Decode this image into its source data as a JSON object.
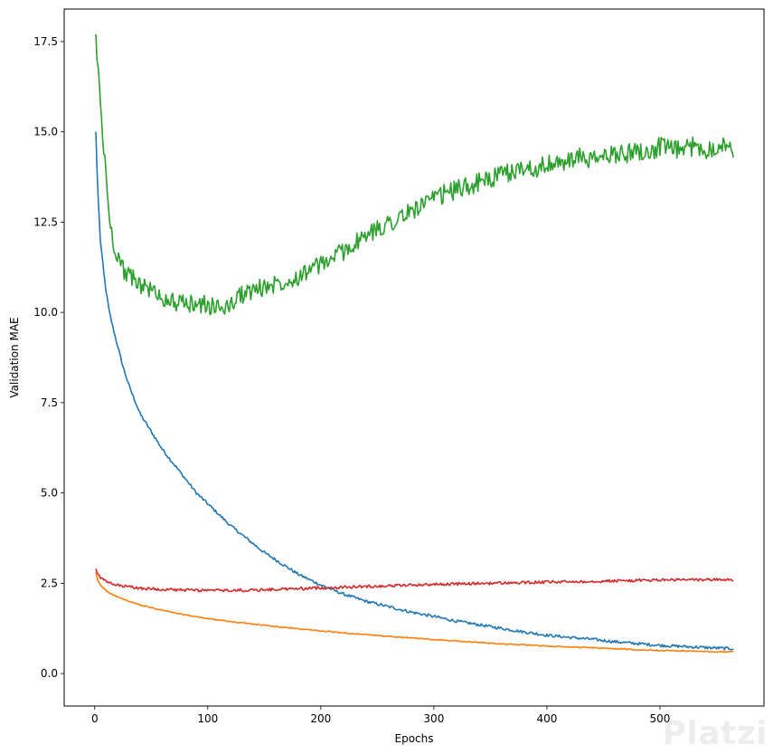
{
  "chart_data": {
    "type": "line",
    "title": "",
    "xlabel": "Epochs",
    "ylabel": "Validation MAE",
    "xlim": [
      -27,
      592
    ],
    "ylim": [
      -0.9,
      18.4
    ],
    "xticks": [
      0,
      100,
      200,
      300,
      400,
      500
    ],
    "yticks": [
      0.0,
      2.5,
      5.0,
      7.5,
      10.0,
      12.5,
      15.0,
      17.5
    ],
    "grid": false,
    "series": [
      {
        "name": "series-1",
        "color": "#1f77b4",
        "x": [
          1,
          2,
          3,
          5,
          8,
          10,
          13,
          16,
          20,
          25,
          30,
          35,
          40,
          50,
          60,
          70,
          80,
          90,
          100,
          110,
          120,
          130,
          140,
          150,
          160,
          170,
          180,
          190,
          200,
          220,
          240,
          260,
          280,
          300,
          320,
          340,
          360,
          380,
          400,
          420,
          440,
          460,
          480,
          500,
          520,
          540,
          555,
          565
        ],
        "y": [
          15.0,
          14.0,
          13.2,
          12.0,
          11.1,
          10.6,
          10.0,
          9.6,
          9.1,
          8.5,
          8.0,
          7.6,
          7.2,
          6.7,
          6.2,
          5.8,
          5.4,
          5.0,
          4.7,
          4.4,
          4.1,
          3.85,
          3.6,
          3.35,
          3.15,
          2.95,
          2.75,
          2.6,
          2.45,
          2.2,
          2.0,
          1.85,
          1.7,
          1.58,
          1.45,
          1.35,
          1.25,
          1.15,
          1.06,
          1.0,
          0.95,
          0.88,
          0.83,
          0.78,
          0.75,
          0.72,
          0.7,
          0.69
        ]
      },
      {
        "name": "series-2",
        "color": "#ff7f0e",
        "x": [
          1,
          3,
          5,
          10,
          15,
          20,
          30,
          40,
          50,
          60,
          80,
          100,
          120,
          140,
          160,
          180,
          200,
          250,
          300,
          350,
          400,
          450,
          500,
          540,
          565
        ],
        "y": [
          2.8,
          2.55,
          2.45,
          2.3,
          2.2,
          2.12,
          2.0,
          1.9,
          1.82,
          1.75,
          1.62,
          1.52,
          1.44,
          1.37,
          1.3,
          1.24,
          1.18,
          1.05,
          0.94,
          0.84,
          0.76,
          0.7,
          0.64,
          0.61,
          0.6
        ]
      },
      {
        "name": "series-3",
        "color": "#2ca02c",
        "x": [
          1,
          2,
          3,
          5,
          8,
          10,
          13,
          16,
          20,
          25,
          30,
          40,
          50,
          60,
          70,
          80,
          90,
          100,
          110,
          120,
          130,
          140,
          150,
          160,
          170,
          180,
          190,
          200,
          210,
          220,
          230,
          240,
          250,
          260,
          270,
          280,
          290,
          300,
          310,
          320,
          330,
          340,
          350,
          360,
          370,
          380,
          390,
          400,
          410,
          420,
          430,
          440,
          450,
          460,
          470,
          480,
          490,
          500,
          510,
          520,
          530,
          540,
          550,
          560,
          565
        ],
        "y": [
          17.7,
          17.0,
          16.8,
          15.8,
          14.5,
          13.8,
          12.6,
          12.0,
          11.6,
          11.2,
          11.0,
          10.8,
          10.6,
          10.4,
          10.3,
          10.2,
          10.25,
          10.2,
          10.1,
          10.2,
          10.5,
          10.6,
          10.7,
          10.8,
          10.9,
          11.0,
          11.2,
          11.3,
          11.5,
          11.7,
          11.9,
          12.1,
          12.3,
          12.5,
          12.6,
          12.8,
          13.0,
          13.1,
          13.3,
          13.4,
          13.5,
          13.6,
          13.7,
          13.8,
          13.9,
          14.0,
          14.0,
          14.1,
          14.1,
          14.2,
          14.3,
          14.2,
          14.3,
          14.4,
          14.4,
          14.5,
          14.4,
          14.6,
          14.5,
          14.5,
          14.6,
          14.5,
          14.6,
          14.7,
          14.2
        ]
      },
      {
        "name": "series-4",
        "color": "#d62728",
        "x": [
          1,
          2,
          4,
          6,
          10,
          15,
          20,
          30,
          40,
          60,
          80,
          100,
          120,
          140,
          160,
          180,
          200,
          250,
          300,
          350,
          400,
          450,
          500,
          540,
          565
        ],
        "y": [
          2.9,
          2.8,
          2.7,
          2.62,
          2.55,
          2.48,
          2.44,
          2.4,
          2.36,
          2.33,
          2.31,
          2.3,
          2.3,
          2.31,
          2.33,
          2.35,
          2.37,
          2.42,
          2.47,
          2.5,
          2.53,
          2.56,
          2.59,
          2.6,
          2.6
        ]
      }
    ]
  },
  "watermark": "Platzi"
}
